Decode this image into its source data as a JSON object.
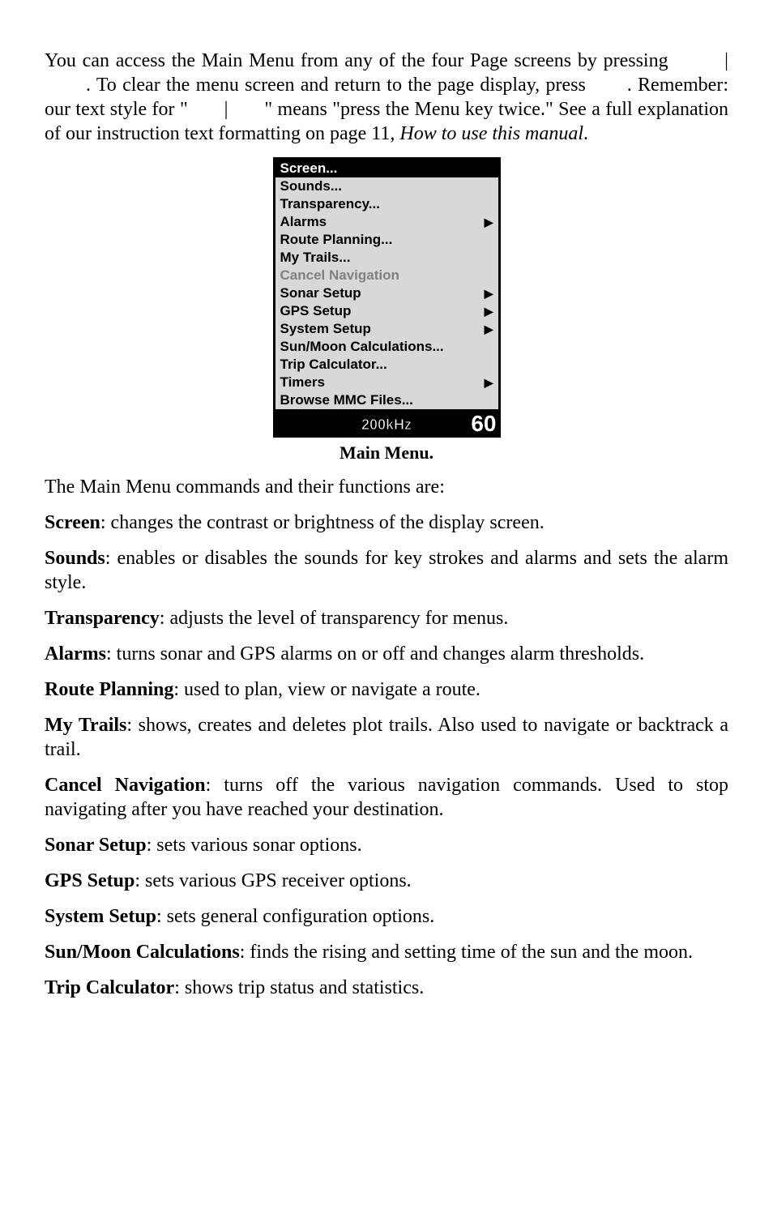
{
  "para_intro": "You can access the Main Menu from any of the four Page screens by pressing         |       . To clear the menu screen and return to the page display, press       . Remember: our text style for \"       |       \" means \"press the Menu key twice.\" See a full explanation of our instruction text formatting on page 11, ",
  "para_intro_italic": "How to use this manual",
  "para_intro_end": ".",
  "menu": {
    "items": [
      {
        "label": "Screen...",
        "selected": true,
        "arrow": false
      },
      {
        "label": "Sounds...",
        "arrow": false
      },
      {
        "label": "Transparency...",
        "arrow": false
      },
      {
        "label": "Alarms",
        "arrow": true
      },
      {
        "label": "Route Planning...",
        "arrow": false
      },
      {
        "label": "My Trails...",
        "arrow": false
      },
      {
        "label": "Cancel Navigation",
        "disabled": true,
        "arrow": false
      },
      {
        "label": "Sonar Setup",
        "arrow": true
      },
      {
        "label": "GPS Setup",
        "arrow": true
      },
      {
        "label": "System Setup",
        "arrow": true
      },
      {
        "label": "Sun/Moon Calculations...",
        "arrow": false
      },
      {
        "label": "Trip Calculator...",
        "arrow": false
      },
      {
        "label": "Timers",
        "arrow": true
      },
      {
        "label": "Browse MMC Files...",
        "arrow": false
      }
    ],
    "footer_khz": "200kHz",
    "footer_depth": "60"
  },
  "caption": "Main Menu.",
  "line_commands": "The Main Menu commands and their functions are:",
  "items": {
    "screen": {
      "term": "Screen",
      "desc": ": changes the contrast or brightness of the display screen."
    },
    "sounds": {
      "term": "Sounds",
      "desc": ": enables or disables the sounds for key strokes and alarms and sets the alarm style."
    },
    "transp": {
      "term": "Transparency",
      "desc": ": adjusts the level of transparency for menus."
    },
    "alarms": {
      "term": "Alarms",
      "desc": ": turns sonar and GPS alarms on or off and changes alarm thresholds."
    },
    "route": {
      "term": "Route Planning",
      "desc": ": used to plan, view or navigate a route."
    },
    "trails": {
      "term": "My Trails",
      "desc": ": shows, creates and deletes plot trails. Also used to navigate or backtrack a trail."
    },
    "cancel": {
      "term": "Cancel Navigation",
      "desc": ": turns off the various navigation commands. Used to stop navigating after you have reached your destination."
    },
    "sonar": {
      "term": "Sonar Setup",
      "desc": ": sets various sonar options."
    },
    "gps": {
      "term": "GPS Setup",
      "desc": ": sets various GPS receiver options."
    },
    "system": {
      "term": "System Setup",
      "desc": ": sets general configuration options."
    },
    "sunmoon": {
      "term": "Sun/Moon Calculations",
      "desc": ": finds the rising and setting time of the sun and the moon."
    },
    "trip": {
      "term": "Trip Calculator",
      "desc": ": shows trip status and statistics."
    }
  }
}
